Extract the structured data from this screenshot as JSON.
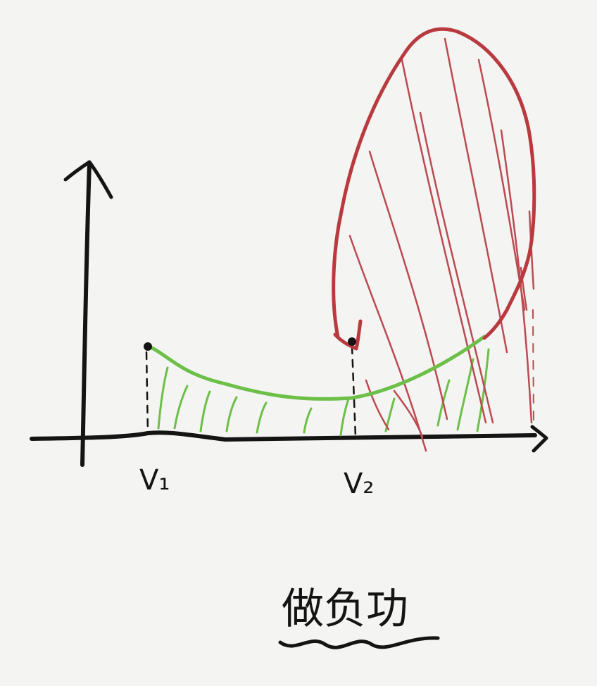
{
  "diagram": {
    "labels": {
      "v1": "V₁",
      "v2": "V₂",
      "caption": "做负功"
    },
    "colors": {
      "ink": "#141414",
      "green_curve": "#6cbf47",
      "red_loop": "#b83a3f",
      "red_hatch": "#bb4a50",
      "background": "#f4f4f3"
    }
  }
}
